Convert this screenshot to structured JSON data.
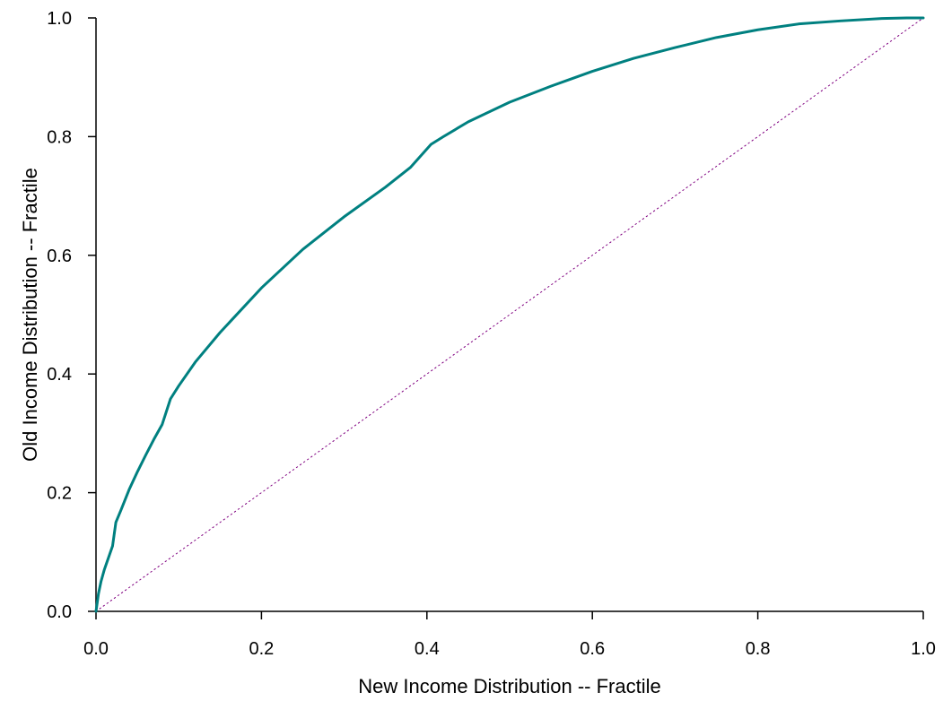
{
  "chart_data": {
    "type": "line",
    "title": "",
    "xlabel": "New Income Distribution -- Fractile",
    "ylabel": "Old Income Distribution -- Fractile",
    "xlim": [
      0,
      1
    ],
    "ylim": [
      0,
      1
    ],
    "x_ticks": [
      "0.0",
      "0.2",
      "0.4",
      "0.6",
      "0.8",
      "1.0"
    ],
    "y_ticks": [
      "0.0",
      "0.2",
      "0.4",
      "0.6",
      "0.8",
      "1.0"
    ],
    "grid": false,
    "legend": "none",
    "series": [
      {
        "style": "solid",
        "color": "#008080",
        "x": [
          0,
          0.003,
          0.006,
          0.01,
          0.015,
          0.02,
          0.024,
          0.03,
          0.04,
          0.05,
          0.06,
          0.07,
          0.08,
          0.09,
          0.1,
          0.12,
          0.15,
          0.2,
          0.25,
          0.3,
          0.35,
          0.38,
          0.405,
          0.42,
          0.45,
          0.5,
          0.55,
          0.6,
          0.65,
          0.7,
          0.75,
          0.8,
          0.85,
          0.9,
          0.95,
          0.98,
          1.0
        ],
        "y": [
          0,
          0.03,
          0.05,
          0.07,
          0.09,
          0.11,
          0.15,
          0.17,
          0.205,
          0.235,
          0.263,
          0.29,
          0.315,
          0.358,
          0.38,
          0.42,
          0.47,
          0.545,
          0.61,
          0.665,
          0.715,
          0.748,
          0.787,
          0.8,
          0.825,
          0.858,
          0.885,
          0.91,
          0.932,
          0.95,
          0.967,
          0.98,
          0.99,
          0.995,
          0.999,
          1.0,
          1.0
        ]
      },
      {
        "style": "dotted",
        "color": "#800080",
        "x": [
          0,
          1
        ],
        "y": [
          0,
          1
        ]
      }
    ]
  }
}
